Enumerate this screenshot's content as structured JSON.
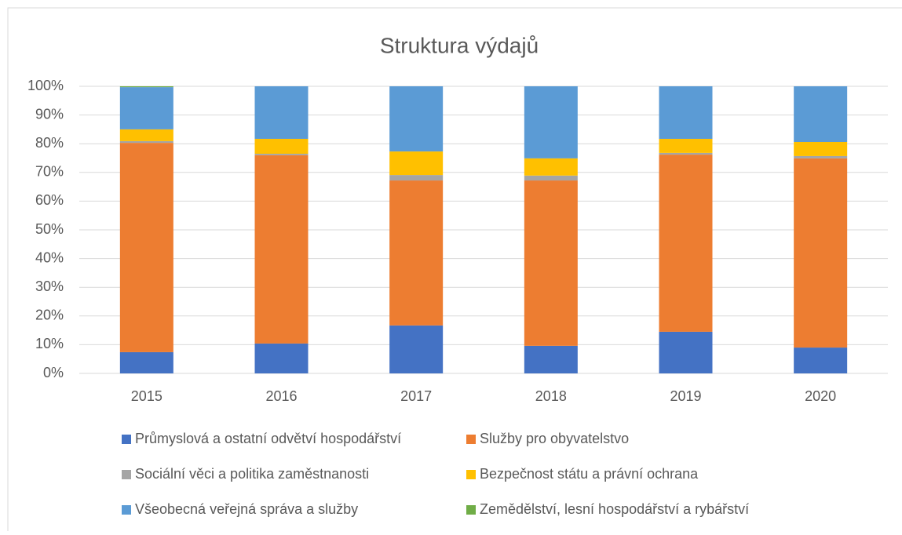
{
  "chart_data": {
    "type": "stacked_bar",
    "title": "Struktura výdajů",
    "categories": [
      "2015",
      "2016",
      "2017",
      "2018",
      "2019",
      "2020"
    ],
    "series": [
      {
        "name": "Průmyslová a ostatní odvětví hospodářství",
        "color": "#4472c4",
        "values": [
          7.4,
          10.4,
          16.7,
          9.6,
          14.5,
          9.0
        ]
      },
      {
        "name": "Služby pro obyvatelstvo",
        "color": "#ed7d31",
        "values": [
          72.9,
          65.6,
          50.5,
          57.6,
          61.7,
          65.9
        ]
      },
      {
        "name": "Sociální věci a politika zaměstnanosti",
        "color": "#a5a5a5",
        "values": [
          0.6,
          0.5,
          1.9,
          1.7,
          0.6,
          0.8
        ]
      },
      {
        "name": "Bezpečnost státu a právní ochrana",
        "color": "#ffc000",
        "values": [
          4.1,
          5.2,
          8.2,
          6.0,
          4.9,
          4.9
        ]
      },
      {
        "name": "Všeobecná veřejná správa a služby",
        "color": "#5b9bd5",
        "values": [
          14.7,
          18.3,
          22.7,
          25.1,
          18.3,
          19.4
        ]
      },
      {
        "name": "Zemědělství, lesní hospodářství a rybářství",
        "color": "#70ad47",
        "values": [
          0.3,
          0,
          0,
          0,
          0,
          0
        ]
      }
    ],
    "ylim": [
      0,
      100
    ],
    "yticks": [
      {
        "value": 0,
        "label": "0%"
      },
      {
        "value": 10,
        "label": "10%"
      },
      {
        "value": 20,
        "label": "20%"
      },
      {
        "value": 30,
        "label": "30%"
      },
      {
        "value": 40,
        "label": "40%"
      },
      {
        "value": 50,
        "label": "50%"
      },
      {
        "value": 60,
        "label": "60%"
      },
      {
        "value": 70,
        "label": "70%"
      },
      {
        "value": 80,
        "label": "80%"
      },
      {
        "value": 90,
        "label": "90%"
      },
      {
        "value": 100,
        "label": "100%"
      }
    ],
    "grid": true,
    "legend": "bottom"
  }
}
